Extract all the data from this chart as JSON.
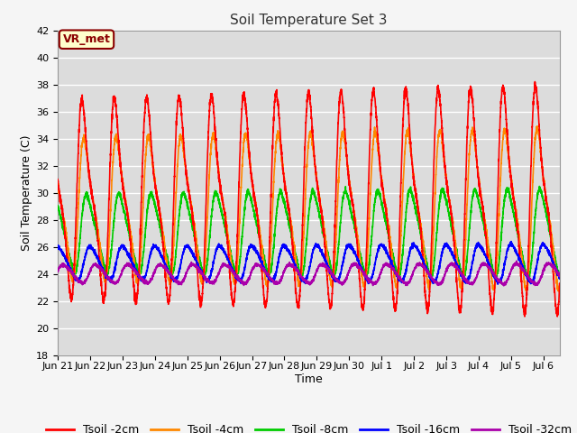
{
  "title": "Soil Temperature Set 3",
  "xlabel": "Time",
  "ylabel": "Soil Temperature (C)",
  "ylim": [
    18,
    42
  ],
  "yticks": [
    18,
    20,
    22,
    24,
    26,
    28,
    30,
    32,
    34,
    36,
    38,
    40,
    42
  ],
  "xtick_labels": [
    "Jun 21",
    "Jun 22",
    "Jun 23",
    "Jun 24",
    "Jun 25",
    "Jun 26",
    "Jun 27",
    "Jun 28",
    "Jun 29",
    "Jun 30",
    "Jul 1",
    "Jul 2",
    "Jul 3",
    "Jul 4",
    "Jul 5",
    "Jul 6"
  ],
  "series_names": [
    "Tsoil -2cm",
    "Tsoil -4cm",
    "Tsoil -8cm",
    "Tsoil -16cm",
    "Tsoil -32cm"
  ],
  "series_colors": [
    "#ff0000",
    "#ff8800",
    "#00cc00",
    "#0000ff",
    "#aa00aa"
  ],
  "series_lw": [
    1.2,
    1.2,
    1.2,
    1.2,
    1.2
  ],
  "annotation_text": "VR_met",
  "annotation_color": "#8B0000",
  "annotation_bg": "#ffffcc",
  "annotation_border": "#8B0000",
  "bg_color": "#dcdcdc",
  "grid_color": "#ffffff",
  "fig_bg_color": "#f5f5f5",
  "title_fontsize": 11,
  "axis_label_fontsize": 9,
  "tick_fontsize": 8,
  "legend_fontsize": 9,
  "days": 15.5,
  "pts_per_day": 288
}
